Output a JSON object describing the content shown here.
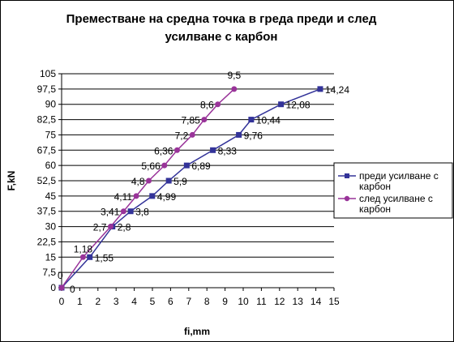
{
  "chart_data": {
    "type": "line",
    "title": [
      "Преместване на средна точка в греда преди и след",
      "усилване с карбон"
    ],
    "xlabel": "fi,mm",
    "ylabel": "F,kN",
    "xlim": [
      0,
      15
    ],
    "ylim": [
      0,
      105
    ],
    "xticks": [
      "0",
      "1",
      "2",
      "3",
      "4",
      "5",
      "6",
      "7",
      "8",
      "9",
      "10",
      "11",
      "12",
      "13",
      "14",
      "15"
    ],
    "yticks": [
      "0",
      "7,5",
      "15",
      "22,5",
      "30",
      "37,5",
      "45",
      "52,5",
      "60",
      "67,5",
      "75",
      "82,5",
      "90",
      "97,5",
      "105"
    ],
    "grid": "horizontal",
    "legend_position": "right",
    "series": [
      {
        "name": [
          "преди усилване с",
          "карбон"
        ],
        "color": "#333399",
        "marker": "square",
        "points": [
          {
            "x": 0,
            "y": 0,
            "label": "0"
          },
          {
            "x": 1.55,
            "y": 15,
            "label": "1,55"
          },
          {
            "x": 2.8,
            "y": 30,
            "label": "2,8"
          },
          {
            "x": 3.8,
            "y": 37.5,
            "label": "3,8"
          },
          {
            "x": 4.99,
            "y": 45,
            "label": "4,99"
          },
          {
            "x": 5.9,
            "y": 52.5,
            "label": "5,9"
          },
          {
            "x": 6.89,
            "y": 60,
            "label": "6,89"
          },
          {
            "x": 8.33,
            "y": 67.5,
            "label": "8,33"
          },
          {
            "x": 9.76,
            "y": 75,
            "label": "9,76"
          },
          {
            "x": 10.44,
            "y": 82.5,
            "label": "10,44"
          },
          {
            "x": 12.08,
            "y": 90,
            "label": "12,08"
          },
          {
            "x": 14.24,
            "y": 97.5,
            "label": "14,24"
          }
        ]
      },
      {
        "name": [
          "след усилване с",
          "карбон"
        ],
        "color": "#993399",
        "marker": "circle",
        "points": [
          {
            "x": 0,
            "y": 0,
            "label": "0"
          },
          {
            "x": 1.18,
            "y": 15,
            "label": "1,18"
          },
          {
            "x": 2.7,
            "y": 30,
            "label": "2,7"
          },
          {
            "x": 3.41,
            "y": 37.5,
            "label": "3,41"
          },
          {
            "x": 4.11,
            "y": 45,
            "label": "4,11"
          },
          {
            "x": 4.8,
            "y": 52.5,
            "label": "4,8"
          },
          {
            "x": 5.66,
            "y": 60,
            "label": "5,66"
          },
          {
            "x": 6.36,
            "y": 67.5,
            "label": "6,36"
          },
          {
            "x": 7.2,
            "y": 75,
            "label": "7,2"
          },
          {
            "x": 7.85,
            "y": 82.5,
            "label": "7,85"
          },
          {
            "x": 8.6,
            "y": 90,
            "label": "8,6"
          },
          {
            "x": 9.5,
            "y": 97.5,
            "label": "9,5"
          }
        ]
      }
    ]
  }
}
